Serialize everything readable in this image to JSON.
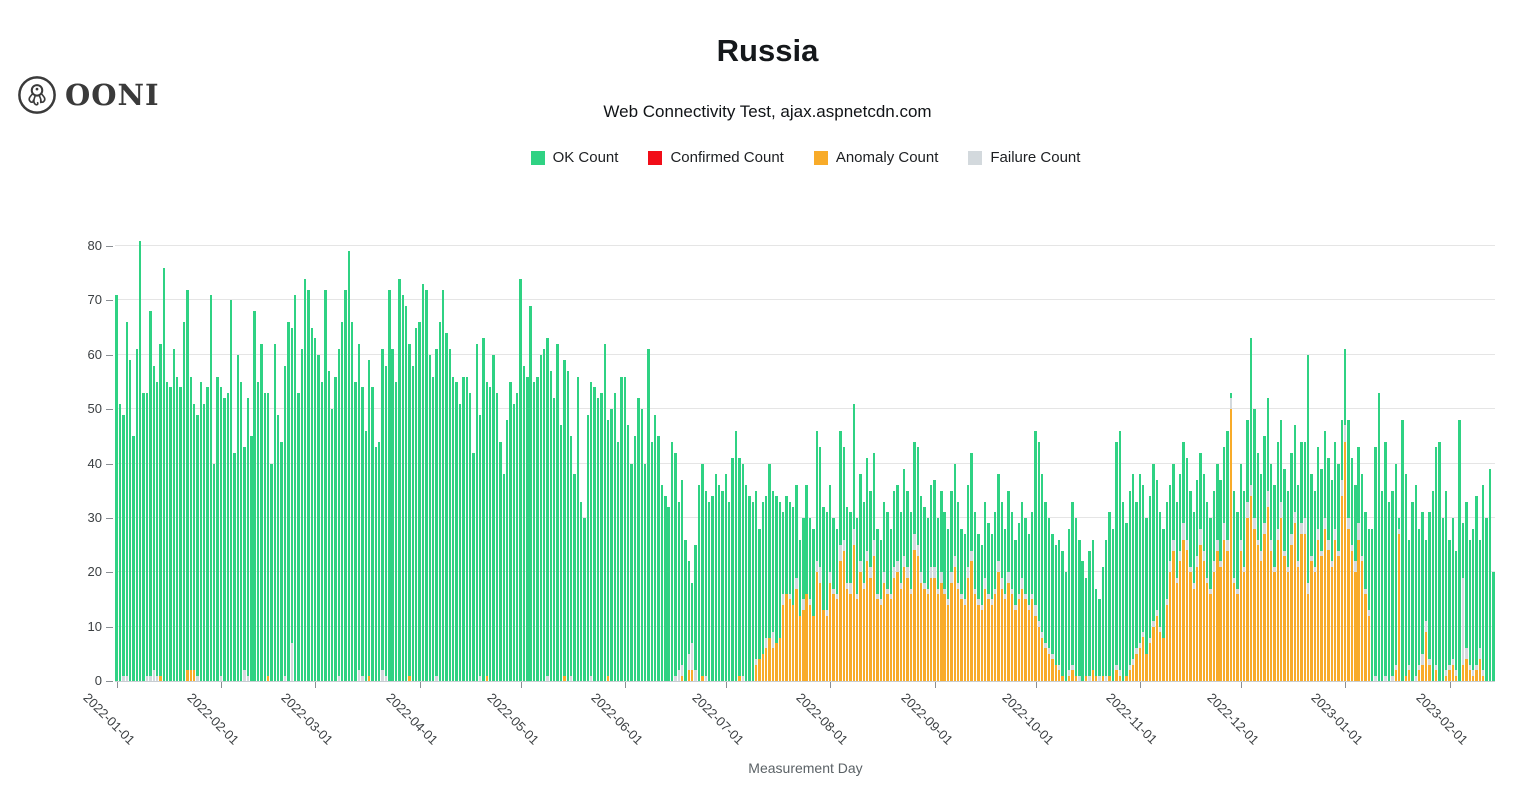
{
  "header": {
    "logo_text": "OONI",
    "logo_icon": "ooni-octopus-icon"
  },
  "chart_data": {
    "type": "bar",
    "stacked": true,
    "title": "Russia",
    "subtitle": "Web Connectivity Test, ajax.aspnetcdn.com",
    "xlabel": "Measurement Day",
    "ylabel": "",
    "ylim": [
      0,
      80
    ],
    "yticks": [
      0,
      10,
      20,
      30,
      40,
      50,
      60,
      70,
      80
    ],
    "grid": true,
    "legend_position": "top",
    "x_start_date": "2022-01-01",
    "x_end_date": "2023-02-14",
    "num_days": 410,
    "x_tick_labels": [
      "2022-01-01",
      "2022-02-01",
      "2022-03-01",
      "2022-04-01",
      "2022-05-01",
      "2022-06-01",
      "2022-07-01",
      "2022-08-01",
      "2022-09-01",
      "2022-10-01",
      "2022-11-01",
      "2022-12-01",
      "2023-01-01",
      "2023-02-01"
    ],
    "x_tick_day_index": [
      0,
      31,
      59,
      90,
      120,
      151,
      181,
      212,
      243,
      273,
      304,
      334,
      365,
      396
    ],
    "stack_order_bottom_to_top": [
      "Anomaly Count",
      "Failure Count",
      "OK Count"
    ],
    "values_note": "daily counts estimated from chart pixels",
    "series": [
      {
        "name": "OK Count",
        "color": "#2fd283",
        "values": [
          71,
          51,
          48,
          65,
          59,
          45,
          61,
          81,
          53,
          52,
          67,
          56,
          54,
          61,
          76,
          55,
          54,
          61,
          56,
          54,
          66,
          70,
          54,
          49,
          48,
          55,
          51,
          54,
          71,
          40,
          56,
          53,
          52,
          53,
          70,
          42,
          60,
          55,
          41,
          51,
          45,
          68,
          55,
          62,
          53,
          52,
          40,
          62,
          49,
          44,
          57,
          66,
          58,
          71,
          53,
          61,
          74,
          72,
          65,
          63,
          60,
          55,
          72,
          57,
          50,
          56,
          60,
          66,
          72,
          79,
          66,
          55,
          60,
          53,
          46,
          58,
          54,
          43,
          44,
          59,
          57,
          72,
          61,
          55,
          74,
          71,
          69,
          61,
          58,
          65,
          66,
          73,
          72,
          60,
          56,
          60,
          66,
          72,
          64,
          61,
          56,
          55,
          51,
          56,
          56,
          53,
          42,
          62,
          48,
          63,
          54,
          54,
          60,
          53,
          44,
          38,
          48,
          55,
          51,
          53,
          74,
          58,
          56,
          69,
          55,
          56,
          60,
          61,
          62,
          57,
          52,
          62,
          47,
          58,
          57,
          44,
          38,
          56,
          33,
          30,
          49,
          54,
          54,
          52,
          53,
          62,
          47,
          50,
          53,
          44,
          56,
          56,
          47,
          40,
          45,
          52,
          50,
          40,
          61,
          44,
          49,
          45,
          36,
          34,
          32,
          44,
          41,
          31,
          34,
          26,
          17,
          11,
          23,
          36,
          39,
          34,
          33,
          34,
          38,
          36,
          35,
          38,
          33,
          41,
          46,
          40,
          39,
          36,
          34,
          33,
          31,
          24,
          28,
          26,
          32,
          26,
          27,
          25,
          15,
          18,
          17,
          18,
          17,
          14,
          15,
          20,
          15,
          16,
          24,
          22,
          19,
          18,
          16,
          13,
          12,
          21,
          17,
          14,
          13,
          23,
          14,
          16,
          15,
          17,
          14,
          16,
          12,
          11,
          13,
          14,
          12,
          14,
          14,
          13,
          16,
          14,
          14,
          17,
          18,
          14,
          14,
          13,
          15,
          16,
          13,
          15,
          14,
          13,
          15,
          17,
          15,
          12,
          12,
          15,
          18,
          14,
          12,
          11,
          14,
          13,
          12,
          14,
          16,
          14,
          12,
          15,
          14,
          12,
          13,
          14,
          14,
          13,
          15,
          32,
          33,
          29,
          26,
          24,
          22,
          22,
          23,
          23,
          20,
          26,
          30,
          29,
          25,
          22,
          18,
          23,
          24,
          16,
          14,
          20,
          25,
          30,
          28,
          41,
          44,
          33,
          28,
          32,
          34,
          27,
          31,
          27,
          25,
          26,
          29,
          24,
          21,
          20,
          18,
          14,
          14,
          14,
          14,
          15,
          15,
          14,
          13,
          14,
          14,
          14,
          14,
          13,
          13,
          14,
          15,
          14,
          20,
          1,
          16,
          14,
          14,
          14,
          15,
          27,
          20,
          16,
          14,
          16,
          17,
          14,
          15,
          16,
          15,
          15,
          14,
          15,
          16,
          14,
          15,
          14,
          42,
          15,
          14,
          15,
          15,
          16,
          15,
          15,
          16,
          16,
          11,
          14,
          18,
          16,
          14,
          14,
          15,
          14,
          15,
          28,
          42,
          53,
          35,
          43,
          33,
          34,
          37,
          2,
          48,
          37,
          23,
          33,
          35,
          25,
          26,
          15,
          27,
          35,
          40,
          44,
          30,
          33,
          23,
          26,
          22,
          48,
          10,
          27,
          23,
          26,
          31,
          20,
          34,
          30,
          39,
          20
        ]
      },
      {
        "name": "Confirmed Count",
        "color": "#f10d18",
        "values_all_zero": true
      },
      {
        "name": "Anomaly Count",
        "color": "#f8ab29",
        "values": [
          0,
          0,
          0,
          0,
          0,
          0,
          0,
          0,
          0,
          0,
          0,
          0,
          0,
          1,
          0,
          0,
          0,
          0,
          0,
          0,
          0,
          2,
          2,
          2,
          0,
          0,
          0,
          0,
          0,
          0,
          0,
          0,
          0,
          0,
          0,
          0,
          0,
          0,
          0,
          0,
          0,
          0,
          0,
          0,
          0,
          1,
          0,
          0,
          0,
          0,
          0,
          0,
          0,
          0,
          0,
          0,
          0,
          0,
          0,
          0,
          0,
          0,
          0,
          0,
          0,
          0,
          0,
          0,
          0,
          0,
          0,
          0,
          0,
          0,
          0,
          1,
          0,
          0,
          0,
          0,
          0,
          0,
          0,
          0,
          0,
          0,
          0,
          1,
          0,
          0,
          0,
          0,
          0,
          0,
          0,
          0,
          0,
          0,
          0,
          0,
          0,
          0,
          0,
          0,
          0,
          0,
          0,
          0,
          0,
          0,
          1,
          0,
          0,
          0,
          0,
          0,
          0,
          0,
          0,
          0,
          0,
          0,
          0,
          0,
          0,
          0,
          0,
          0,
          0,
          0,
          0,
          0,
          0,
          1,
          0,
          0,
          0,
          0,
          0,
          0,
          0,
          0,
          0,
          0,
          0,
          0,
          1,
          0,
          0,
          0,
          0,
          0,
          0,
          0,
          0,
          0,
          0,
          0,
          0,
          0,
          0,
          0,
          0,
          0,
          0,
          0,
          0,
          0,
          1,
          0,
          2,
          2,
          0,
          0,
          1,
          0,
          0,
          0,
          0,
          0,
          0,
          0,
          0,
          0,
          0,
          1,
          0,
          0,
          0,
          0,
          3,
          4,
          5,
          6,
          8,
          6,
          7,
          8,
          14,
          16,
          15,
          14,
          17,
          12,
          13,
          16,
          14,
          12,
          20,
          18,
          13,
          12,
          18,
          16,
          15,
          22,
          24,
          17,
          16,
          25,
          15,
          20,
          17,
          22,
          19,
          23,
          15,
          14,
          18,
          16,
          15,
          19,
          20,
          17,
          21,
          19,
          16,
          24,
          23,
          18,
          17,
          16,
          19,
          19,
          16,
          18,
          16,
          14,
          18,
          21,
          17,
          15,
          14,
          19,
          22,
          16,
          14,
          13,
          17,
          15,
          14,
          16,
          20,
          17,
          15,
          18,
          16,
          13,
          15,
          17,
          15,
          13,
          15,
          12,
          10,
          8,
          6,
          5,
          4,
          3,
          2,
          1,
          0,
          1,
          2,
          1,
          0,
          0,
          1,
          0,
          2,
          1,
          0,
          1,
          0,
          1,
          0,
          2,
          1,
          0,
          1,
          2,
          3,
          5,
          6,
          8,
          5,
          7,
          10,
          12,
          9,
          8,
          14,
          20,
          24,
          18,
          22,
          26,
          24,
          20,
          17,
          21,
          25,
          22,
          18,
          16,
          20,
          24,
          21,
          26,
          24,
          50,
          18,
          16,
          24,
          20,
          30,
          34,
          28,
          25,
          22,
          27,
          32,
          24,
          20,
          26,
          30,
          23,
          20,
          25,
          29,
          21,
          27,
          27,
          16,
          22,
          20,
          26,
          23,
          28,
          24,
          21,
          26,
          23,
          34,
          44,
          28,
          24,
          20,
          26,
          22,
          16,
          12,
          0,
          0,
          0,
          0,
          0,
          0,
          0,
          2,
          27,
          0,
          1,
          2,
          0,
          0,
          2,
          3,
          9,
          3,
          0,
          2,
          0,
          0,
          1,
          2,
          3,
          1,
          0,
          3,
          4,
          2,
          1,
          2,
          4,
          1,
          0,
          0,
          0
        ]
      },
      {
        "name": "Failure Count",
        "color": "#d3d9dd",
        "values": [
          0,
          0,
          1,
          1,
          0,
          0,
          0,
          0,
          0,
          1,
          1,
          2,
          1,
          0,
          0,
          0,
          0,
          0,
          0,
          0,
          0,
          0,
          0,
          0,
          1,
          0,
          0,
          0,
          0,
          0,
          0,
          1,
          0,
          0,
          0,
          0,
          0,
          0,
          2,
          1,
          0,
          0,
          0,
          0,
          0,
          0,
          0,
          0,
          0,
          0,
          1,
          0,
          7,
          0,
          0,
          0,
          0,
          0,
          0,
          0,
          0,
          0,
          0,
          0,
          0,
          0,
          1,
          0,
          0,
          0,
          0,
          0,
          2,
          1,
          0,
          0,
          0,
          0,
          0,
          2,
          1,
          0,
          0,
          0,
          0,
          0,
          0,
          0,
          0,
          0,
          0,
          0,
          0,
          0,
          0,
          1,
          0,
          0,
          0,
          0,
          0,
          0,
          0,
          0,
          0,
          0,
          0,
          0,
          1,
          0,
          0,
          0,
          0,
          0,
          0,
          0,
          0,
          0,
          0,
          0,
          0,
          0,
          0,
          0,
          0,
          0,
          0,
          0,
          1,
          0,
          0,
          0,
          0,
          0,
          0,
          1,
          0,
          0,
          0,
          0,
          0,
          1,
          0,
          0,
          0,
          0,
          0,
          0,
          0,
          0,
          0,
          0,
          0,
          0,
          0,
          0,
          0,
          0,
          0,
          0,
          0,
          0,
          0,
          0,
          0,
          0,
          1,
          2,
          2,
          0,
          3,
          5,
          2,
          0,
          0,
          1,
          0,
          0,
          0,
          0,
          0,
          0,
          0,
          0,
          0,
          0,
          1,
          0,
          0,
          0,
          1,
          0,
          0,
          2,
          0,
          3,
          0,
          0,
          2,
          0,
          1,
          0,
          2,
          0,
          2,
          0,
          1,
          0,
          2,
          3,
          0,
          1,
          2,
          1,
          1,
          3,
          2,
          1,
          2,
          3,
          1,
          2,
          1,
          2,
          2,
          3,
          1,
          1,
          2,
          1,
          1,
          2,
          2,
          1,
          2,
          2,
          1,
          3,
          2,
          2,
          1,
          1,
          2,
          2,
          1,
          2,
          1,
          1,
          2,
          2,
          1,
          1,
          1,
          2,
          2,
          1,
          1,
          1,
          2,
          1,
          1,
          1,
          2,
          2,
          1,
          2,
          1,
          1,
          1,
          2,
          1,
          1,
          1,
          2,
          1,
          1,
          1,
          1,
          1,
          0,
          1,
          0,
          0,
          1,
          1,
          0,
          1,
          0,
          0,
          1,
          0,
          0,
          1,
          0,
          1,
          0,
          0,
          1,
          1,
          0,
          0,
          1,
          1,
          1,
          1,
          1,
          0,
          1,
          1,
          1,
          1,
          0,
          1,
          2,
          2,
          1,
          2,
          3,
          2,
          1,
          1,
          2,
          3,
          2,
          1,
          1,
          2,
          2,
          1,
          3,
          2,
          2,
          1,
          1,
          2,
          1,
          3,
          2,
          2,
          1,
          2,
          2,
          3,
          2,
          1,
          2,
          3,
          1,
          1,
          2,
          2,
          1,
          2,
          3,
          2,
          1,
          1,
          2,
          1,
          2,
          2,
          1,
          2,
          1,
          3,
          3,
          2,
          1,
          2,
          3,
          1,
          1,
          1,
          0,
          1,
          0,
          0,
          1,
          0,
          1,
          1,
          1,
          0,
          0,
          1,
          0,
          1,
          1,
          2,
          2,
          1,
          0,
          1,
          0,
          0,
          1,
          1,
          1,
          1,
          0,
          16,
          2,
          1,
          1,
          1,
          2,
          1,
          0,
          0,
          0
        ]
      }
    ]
  }
}
